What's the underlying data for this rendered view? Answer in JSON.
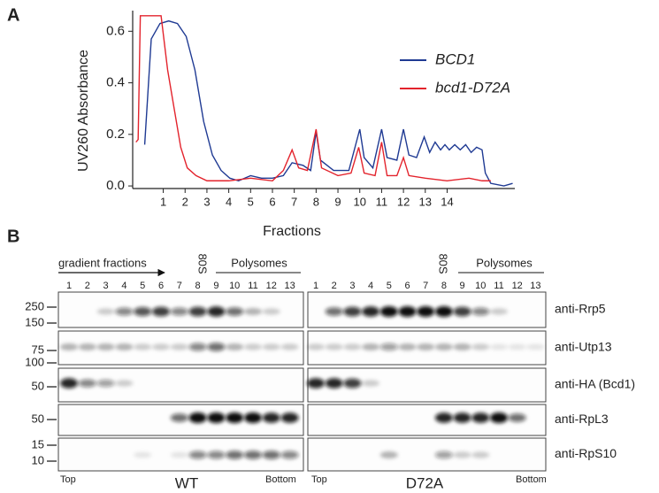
{
  "chart_data": {
    "type": "line",
    "panel_label": "A",
    "ylabel": "UV260 Absorbance",
    "xlabel": "Fractions",
    "xlim": [
      -0.4,
      17.1
    ],
    "ylim": [
      -0.01,
      0.68
    ],
    "xticks": [
      1,
      2,
      3,
      4,
      5,
      6,
      7,
      8,
      9,
      10,
      11,
      12,
      13,
      14
    ],
    "yticks": [
      {
        "value": 0,
        "label": "0.0"
      },
      0.2,
      0.4,
      0.6
    ],
    "series": [
      {
        "name": "BCD1",
        "color": "#1f3a93",
        "x": [
          0.15,
          0.45,
          0.85,
          1.25,
          1.65,
          2.05,
          2.45,
          2.85,
          3.25,
          3.65,
          4.05,
          4.45,
          5.0,
          5.5,
          6.0,
          6.5,
          6.9,
          7.4,
          7.75,
          8.0,
          8.2,
          8.8,
          9.5,
          10.0,
          10.2,
          10.6,
          11.0,
          11.25,
          11.7,
          12.0,
          12.25,
          12.6,
          12.95,
          13.2,
          13.45,
          13.7,
          13.9,
          14.1,
          14.35,
          14.6,
          14.85,
          15.1,
          15.35,
          15.6,
          15.75,
          16.0,
          16.6,
          17.0
        ],
        "values": [
          0.16,
          0.57,
          0.63,
          0.64,
          0.63,
          0.58,
          0.45,
          0.25,
          0.12,
          0.06,
          0.03,
          0.02,
          0.04,
          0.03,
          0.03,
          0.04,
          0.09,
          0.08,
          0.06,
          0.21,
          0.1,
          0.06,
          0.06,
          0.22,
          0.11,
          0.07,
          0.22,
          0.11,
          0.1,
          0.22,
          0.12,
          0.11,
          0.19,
          0.13,
          0.17,
          0.14,
          0.16,
          0.14,
          0.16,
          0.14,
          0.16,
          0.13,
          0.15,
          0.14,
          0.05,
          0.01,
          0.0,
          0.01
        ]
      },
      {
        "name": "bcd1-D72A",
        "color": "#e3232c",
        "x": [
          -0.25,
          -0.15,
          -0.05,
          0.9,
          1.2,
          1.5,
          1.8,
          2.1,
          2.5,
          3.0,
          4.0,
          5.0,
          6.0,
          6.5,
          6.9,
          7.2,
          7.6,
          8.0,
          8.25,
          9.0,
          9.6,
          9.95,
          10.2,
          10.7,
          11.0,
          11.25,
          11.7,
          12.0,
          12.25,
          13.0,
          14.0,
          15.0,
          15.6,
          16.0
        ],
        "values": [
          0.17,
          0.18,
          0.66,
          0.66,
          0.45,
          0.3,
          0.15,
          0.07,
          0.04,
          0.02,
          0.02,
          0.03,
          0.02,
          0.06,
          0.14,
          0.07,
          0.06,
          0.22,
          0.07,
          0.04,
          0.05,
          0.15,
          0.05,
          0.04,
          0.17,
          0.04,
          0.04,
          0.11,
          0.04,
          0.03,
          0.02,
          0.03,
          0.02,
          0.02
        ]
      }
    ]
  },
  "panel_b": {
    "label": "B",
    "gradient_label": "gradient fractions",
    "strains": [
      {
        "name": "WT",
        "fractions": [
          1,
          2,
          3,
          4,
          5,
          6,
          7,
          8,
          9,
          10,
          11,
          12,
          13
        ],
        "ribosome_label": "80S",
        "polysome_label": "Polysomes",
        "top": "Top",
        "bottom": "Bottom"
      },
      {
        "name": "D72A",
        "fractions": [
          1,
          2,
          3,
          4,
          5,
          6,
          7,
          8,
          9,
          10,
          11,
          12,
          13
        ],
        "ribosome_label": "80S",
        "polysome_label": "Polysomes",
        "top": "Top",
        "bottom": "Bottom"
      }
    ],
    "blots": [
      {
        "antibody": "anti-Rrp5",
        "markers": [
          250,
          150
        ]
      },
      {
        "antibody": "anti-Utp13",
        "markers": [
          75,
          100
        ]
      },
      {
        "antibody": "anti-HA (Bcd1)",
        "markers": [
          50
        ]
      },
      {
        "antibody": "anti-RpL3",
        "markers": [
          50
        ]
      },
      {
        "antibody": "anti-RpS10",
        "markers": [
          15,
          10
        ]
      }
    ]
  }
}
